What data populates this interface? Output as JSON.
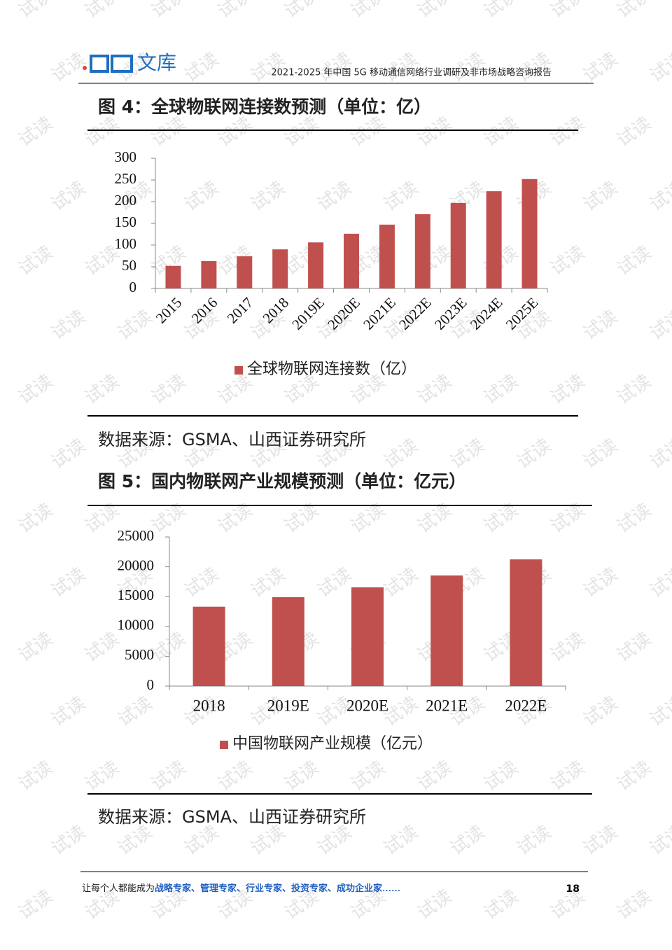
{
  "header": {
    "logo_text": "文库",
    "report_title": "2021-2025 年中国 5G 移动通信网络行业调研及非市场战略咨询报告"
  },
  "figures": [
    {
      "title": "图 4：全球物联网连接数预测（单位：亿）",
      "source": "数据来源：GSMA、山西证券研究所"
    },
    {
      "title": "图 5：国内物联网产业规模预测（单位：亿元）",
      "source": "数据来源：GSMA、山西证券研究所"
    }
  ],
  "chart_data": [
    {
      "type": "bar",
      "categories": [
        "2015",
        "2016",
        "2017",
        "2018",
        "2019E",
        "2020E",
        "2021E",
        "2022E",
        "2023E",
        "2024E",
        "2025E"
      ],
      "series": [
        {
          "name": "全球物联网连接数（亿）",
          "color": "#c0504d",
          "values": [
            52,
            63,
            74,
            90,
            106,
            126,
            147,
            171,
            197,
            224,
            252
          ]
        }
      ],
      "ylim": [
        0,
        300
      ],
      "yticks": [
        0,
        50,
        100,
        150,
        200,
        250,
        300
      ],
      "grid": false
    },
    {
      "type": "bar",
      "categories": [
        "2018",
        "2019E",
        "2020E",
        "2021E",
        "2022E"
      ],
      "series": [
        {
          "name": "中国物联网产业规模（亿元）",
          "color": "#c0504d",
          "values": [
            13300,
            14900,
            16550,
            18540,
            21240
          ]
        }
      ],
      "ylim": [
        0,
        25000
      ],
      "yticks": [
        0,
        5000,
        10000,
        15000,
        20000,
        25000
      ],
      "grid": false
    }
  ],
  "footer": {
    "slogan_prefix": "让每个人都能成为",
    "slogan_highlight": "战略专家、管理专家、行业专家、投资专家、成功企业家……",
    "page_number": "18"
  },
  "watermark": "试读"
}
